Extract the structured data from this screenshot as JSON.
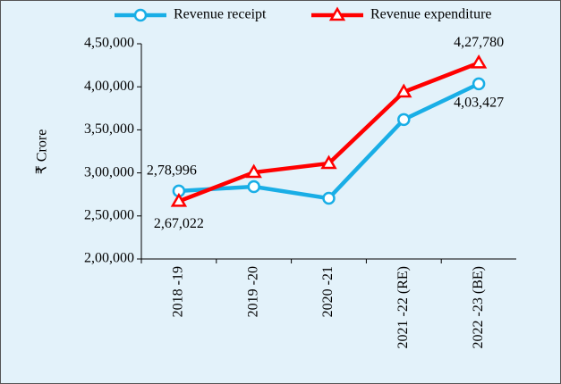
{
  "chart_data": {
    "type": "line",
    "y_label": "₹ Crore",
    "categories": [
      "2018 -19",
      "2019 -20",
      "2020 -21",
      "2021 -22 (RE)",
      "2022 -23 (BE)"
    ],
    "series": [
      {
        "name": "Revenue receipt",
        "color": "#19aee6",
        "marker": "circle",
        "values": [
          278996,
          284000,
          270500,
          362000,
          403427
        ],
        "value_labels": [
          "2,78,996",
          null,
          null,
          null,
          "4,03,427"
        ]
      },
      {
        "name": "Revenue expenditure",
        "color": "#ff0000",
        "marker": "triangle",
        "values": [
          267022,
          300600,
          311000,
          394000,
          427780
        ],
        "value_labels": [
          "2,67,022",
          null,
          null,
          null,
          "4,27,780"
        ]
      }
    ],
    "ylim": [
      200000,
      450000
    ],
    "yticks": [
      {
        "value": 200000,
        "label": "2,00,000"
      },
      {
        "value": 250000,
        "label": "2,50,000"
      },
      {
        "value": 300000,
        "label": "3,00,000"
      },
      {
        "value": 350000,
        "label": "3,50,000"
      },
      {
        "value": 400000,
        "label": "4,00,000"
      },
      {
        "value": 450000,
        "label": "4,50,000"
      }
    ],
    "legend": "top"
  }
}
